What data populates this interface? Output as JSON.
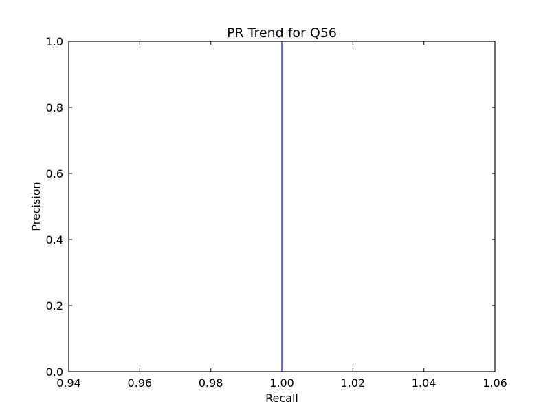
{
  "chart_data": {
    "type": "line",
    "title": "PR Trend for Q56",
    "xlabel": "Recall",
    "ylabel": "Precision",
    "xlim": [
      0.94,
      1.06
    ],
    "ylim": [
      0.0,
      1.0
    ],
    "xticks": [
      "0.94",
      "0.96",
      "0.98",
      "1.00",
      "1.02",
      "1.04",
      "1.06"
    ],
    "yticks": [
      "0.0",
      "0.2",
      "0.4",
      "0.6",
      "0.8",
      "1.0"
    ],
    "grid": false,
    "series": [
      {
        "x": [
          1.0,
          1.0
        ],
        "y": [
          0.0,
          1.0
        ],
        "color": "#0000ff"
      }
    ]
  }
}
